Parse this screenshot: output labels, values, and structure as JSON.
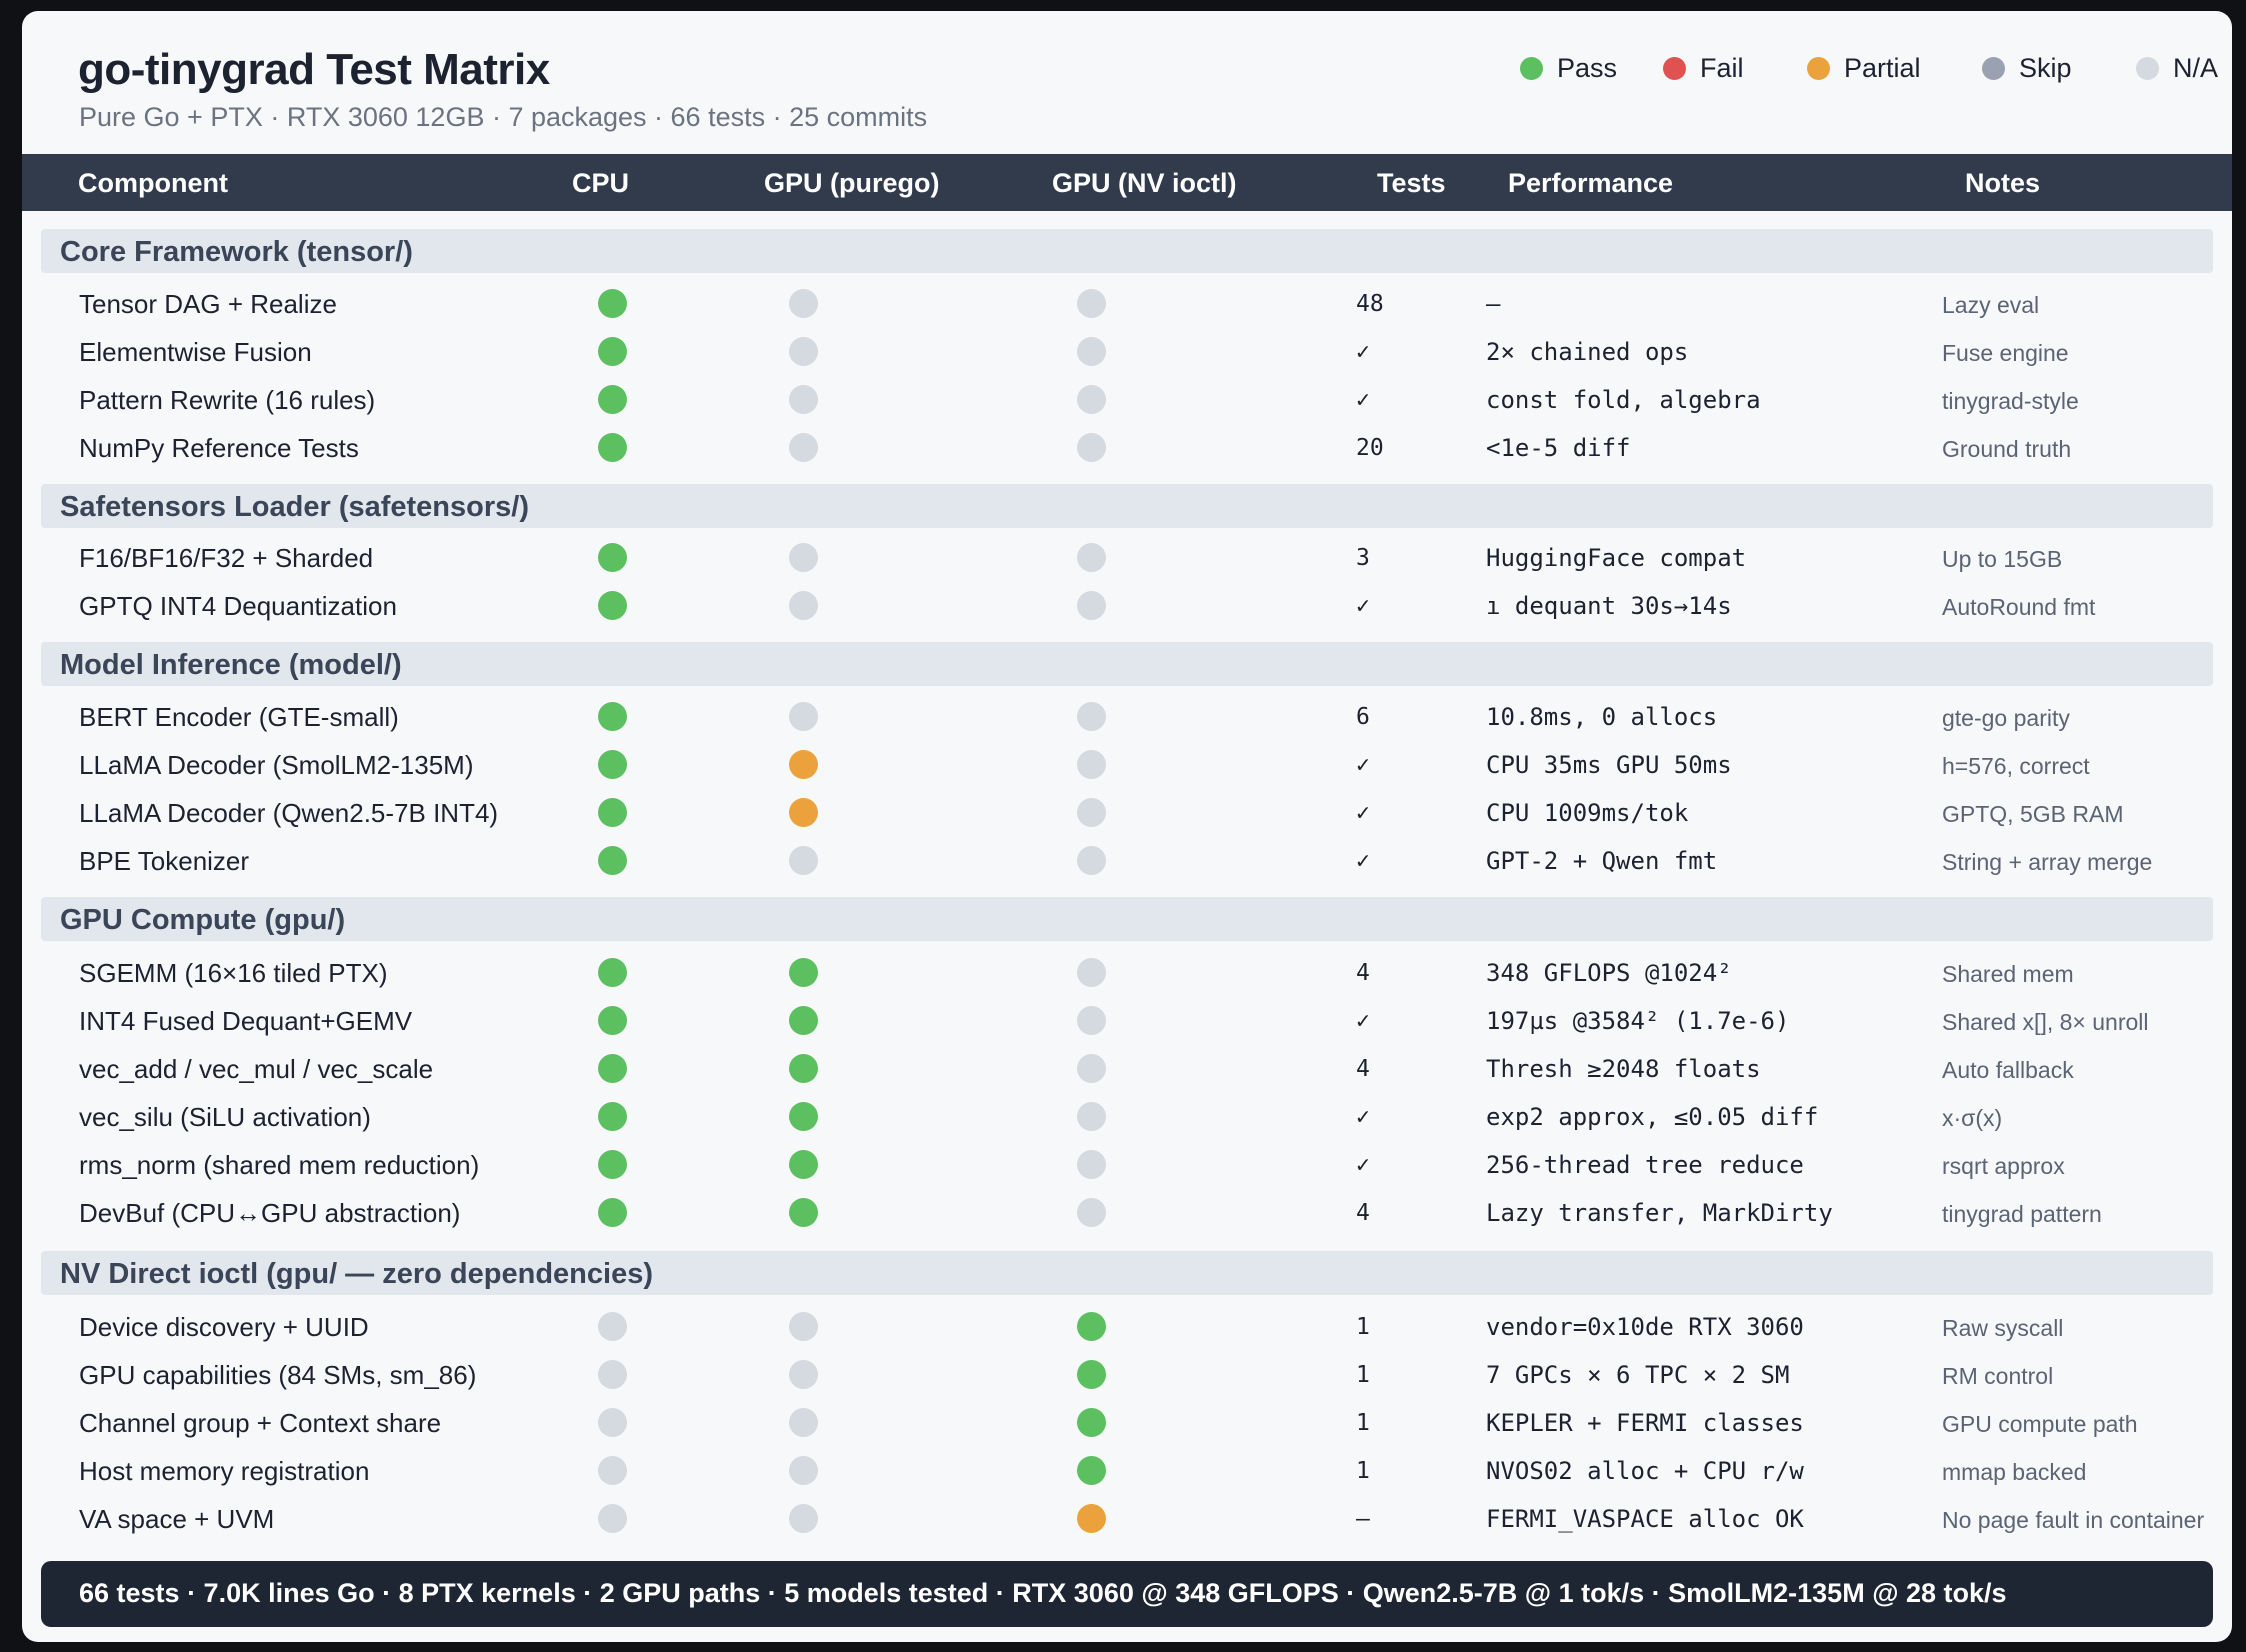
{
  "title": "go-tinygrad Test Matrix",
  "subtitle": "Pure Go + PTX · RTX 3060 12GB · 7 packages · 66 tests · 25 commits",
  "colors": {
    "pass": "#5cbf60",
    "fail": "#e05252",
    "partial": "#eba23c",
    "skip": "#9aa2b1",
    "na": "#d5d9e0"
  },
  "legend": [
    {
      "key": "pass",
      "label": "Pass"
    },
    {
      "key": "fail",
      "label": "Fail"
    },
    {
      "key": "partial",
      "label": "Partial"
    },
    {
      "key": "skip",
      "label": "Skip"
    },
    {
      "key": "na",
      "label": "N/A"
    }
  ],
  "columns": {
    "component": "Component",
    "cpu": "CPU",
    "gpu_purego": "GPU (purego)",
    "gpu_nv": "GPU (NV ioctl)",
    "tests": "Tests",
    "performance": "Performance",
    "notes": "Notes"
  },
  "sections": [
    {
      "title": "Core Framework (tensor/)",
      "rows": [
        {
          "name": "Tensor DAG + Realize",
          "cpu": "pass",
          "gpu": "na",
          "nv": "na",
          "tests": "48",
          "perf": "—",
          "notes": "Lazy eval"
        },
        {
          "name": "Elementwise Fusion",
          "cpu": "pass",
          "gpu": "na",
          "nv": "na",
          "tests": "✓",
          "perf": "2× chained ops",
          "notes": "Fuse engine"
        },
        {
          "name": "Pattern Rewrite (16 rules)",
          "cpu": "pass",
          "gpu": "na",
          "nv": "na",
          "tests": "✓",
          "perf": "const fold, algebra",
          "notes": "tinygrad-style"
        },
        {
          "name": "NumPy Reference Tests",
          "cpu": "pass",
          "gpu": "na",
          "nv": "na",
          "tests": "20",
          "perf": "<1e-5 diff",
          "notes": "Ground truth"
        }
      ]
    },
    {
      "title": "Safetensors Loader (safetensors/)",
      "rows": [
        {
          "name": "F16/BF16/F32 + Sharded",
          "cpu": "pass",
          "gpu": "na",
          "nv": "na",
          "tests": "3",
          "perf": "HuggingFace compat",
          "notes": "Up to 15GB"
        },
        {
          "name": "GPTQ INT4 Dequantization",
          "cpu": "pass",
          "gpu": "na",
          "nv": "na",
          "tests": "✓",
          "perf": "ı dequant 30s→14s",
          "notes": "AutoRound fmt"
        }
      ]
    },
    {
      "title": "Model Inference (model/)",
      "rows": [
        {
          "name": "BERT Encoder (GTE-small)",
          "cpu": "pass",
          "gpu": "na",
          "nv": "na",
          "tests": "6",
          "perf": "10.8ms, 0 allocs",
          "notes": "gte-go parity"
        },
        {
          "name": "LLaMA Decoder (SmolLM2-135M)",
          "cpu": "pass",
          "gpu": "partial",
          "nv": "na",
          "tests": "✓",
          "perf": "CPU 35ms GPU 50ms",
          "notes": "h=576, correct"
        },
        {
          "name": "LLaMA Decoder (Qwen2.5-7B INT4)",
          "cpu": "pass",
          "gpu": "partial",
          "nv": "na",
          "tests": "✓",
          "perf": "CPU 1009ms/tok",
          "notes": "GPTQ, 5GB RAM"
        },
        {
          "name": "BPE Tokenizer",
          "cpu": "pass",
          "gpu": "na",
          "nv": "na",
          "tests": "✓",
          "perf": "GPT-2 + Qwen fmt",
          "notes": "String + array merge"
        }
      ]
    },
    {
      "title": "GPU Compute (gpu/)",
      "rows": [
        {
          "name": "SGEMM (16×16 tiled PTX)",
          "cpu": "pass",
          "gpu": "pass",
          "nv": "na",
          "tests": "4",
          "perf": "348 GFLOPS @1024²",
          "notes": "Shared mem"
        },
        {
          "name": "INT4 Fused Dequant+GEMV",
          "cpu": "pass",
          "gpu": "pass",
          "nv": "na",
          "tests": "✓",
          "perf": "197µs @3584² (1.7e-6)",
          "notes": "Shared x[], 8× unroll"
        },
        {
          "name": "vec_add / vec_mul / vec_scale",
          "cpu": "pass",
          "gpu": "pass",
          "nv": "na",
          "tests": "4",
          "perf": "Thresh ≥2048 floats",
          "notes": "Auto fallback"
        },
        {
          "name": "vec_silu (SiLU activation)",
          "cpu": "pass",
          "gpu": "pass",
          "nv": "na",
          "tests": "✓",
          "perf": "exp2 approx, ≤0.05 diff",
          "notes": "x·σ(x)"
        },
        {
          "name": "rms_norm (shared mem reduction)",
          "cpu": "pass",
          "gpu": "pass",
          "nv": "na",
          "tests": "✓",
          "perf": "256-thread tree reduce",
          "notes": "rsqrt approx"
        },
        {
          "name": "DevBuf (CPU↔GPU abstraction)",
          "cpu": "pass",
          "gpu": "pass",
          "nv": "na",
          "tests": "4",
          "perf": "Lazy transfer, MarkDirty",
          "notes": "tinygrad pattern"
        }
      ]
    },
    {
      "title": "NV Direct ioctl (gpu/ — zero dependencies)",
      "rows": [
        {
          "name": "Device discovery + UUID",
          "cpu": "na",
          "gpu": "na",
          "nv": "pass",
          "tests": "1",
          "perf": "vendor=0x10de RTX 3060",
          "notes": "Raw syscall"
        },
        {
          "name": "GPU capabilities (84 SMs, sm_86)",
          "cpu": "na",
          "gpu": "na",
          "nv": "pass",
          "tests": "1",
          "perf": "7 GPCs × 6 TPC × 2 SM",
          "notes": "RM control"
        },
        {
          "name": "Channel group + Context share",
          "cpu": "na",
          "gpu": "na",
          "nv": "pass",
          "tests": "1",
          "perf": "KEPLER + FERMI classes",
          "notes": "GPU compute path"
        },
        {
          "name": "Host memory registration",
          "cpu": "na",
          "gpu": "na",
          "nv": "pass",
          "tests": "1",
          "perf": "NVOS02 alloc + CPU r/w",
          "notes": "mmap backed"
        },
        {
          "name": "VA space + UVM",
          "cpu": "na",
          "gpu": "na",
          "nv": "partial",
          "tests": "—",
          "perf": "FERMI_VASPACE alloc OK",
          "notes": "No page fault in container"
        }
      ]
    }
  ],
  "footer": "66 tests · 7.0K lines Go · 8 PTX kernels · 2 GPU paths · 5 models tested · RTX 3060 @ 348 GFLOPS · Qwen2.5-7B @ 1 tok/s · SmolLM2-135M @ 28 tok/s"
}
